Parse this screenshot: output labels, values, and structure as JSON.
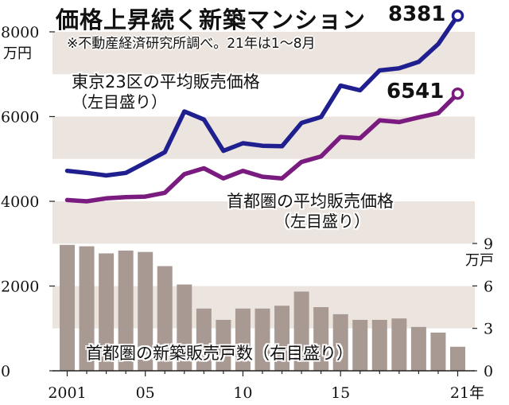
{
  "title": "価格上昇続く新築マンション",
  "subtitle": "※不動産経済研究所調べ。21年は1〜8月",
  "left_axis_unit": "万円",
  "right_axis_unit": "万戸",
  "tokyo_label_main": "東京23区の平均販売価格",
  "tokyo_label_sub": "（左目盛り）",
  "shuto_label_main": "首都圏の平均販売価格",
  "shuto_label_sub": "（左目盛り）",
  "bars_label": "首都圏の新築販売戸数（右目盛り）",
  "tokyo_end_value": "8381",
  "shuto_end_value": "6541",
  "colors": {
    "tokyo": "#1f1f8f",
    "shuto": "#7a1b7f",
    "bars": "#a89a93",
    "band": "#ece5df"
  },
  "chart_data": {
    "type": "bar+line",
    "x": [
      2001,
      2002,
      2003,
      2004,
      2005,
      2006,
      2007,
      2008,
      2009,
      2010,
      2011,
      2012,
      2013,
      2014,
      2015,
      2016,
      2017,
      2018,
      2019,
      2020,
      2021
    ],
    "x_tick_labels": [
      "2001",
      "05",
      "10",
      "15",
      "21年"
    ],
    "x_tick_years": [
      2001,
      2005,
      2010,
      2015,
      2021
    ],
    "left_axis": {
      "label": "万円",
      "ylim": [
        0,
        8000
      ],
      "ticks": [
        0,
        2000,
        4000,
        6000,
        8000
      ],
      "tick_labels": [
        "0",
        "2000",
        "4000",
        "6000",
        "8000"
      ]
    },
    "right_axis": {
      "label": "万戸",
      "ylim": [
        0,
        9
      ],
      "ticks": [
        0,
        3,
        6,
        9
      ],
      "tick_labels": [
        "0",
        "3",
        "6",
        "9"
      ]
    },
    "series": [
      {
        "name": "東京23区の平均販売価格",
        "axis": "left",
        "type": "line",
        "values": [
          4720,
          4670,
          4610,
          4670,
          4910,
          5160,
          6120,
          5930,
          5190,
          5370,
          5310,
          5300,
          5850,
          5990,
          6730,
          6620,
          7090,
          7140,
          7290,
          7710,
          8381
        ]
      },
      {
        "name": "首都圏の平均販売価格",
        "axis": "left",
        "type": "line",
        "values": [
          4030,
          4000,
          4070,
          4100,
          4110,
          4200,
          4640,
          4780,
          4540,
          4720,
          4580,
          4540,
          4930,
          5060,
          5520,
          5490,
          5910,
          5870,
          5980,
          6080,
          6541
        ]
      },
      {
        "name": "首都圏の新築販売戸数",
        "axis": "right",
        "type": "bar",
        "values": [
          8.9,
          8.8,
          8.3,
          8.5,
          8.4,
          7.4,
          6.1,
          4.4,
          3.6,
          4.4,
          4.4,
          4.6,
          5.6,
          4.5,
          4.0,
          3.6,
          3.6,
          3.7,
          3.1,
          2.7,
          1.7
        ]
      }
    ]
  }
}
